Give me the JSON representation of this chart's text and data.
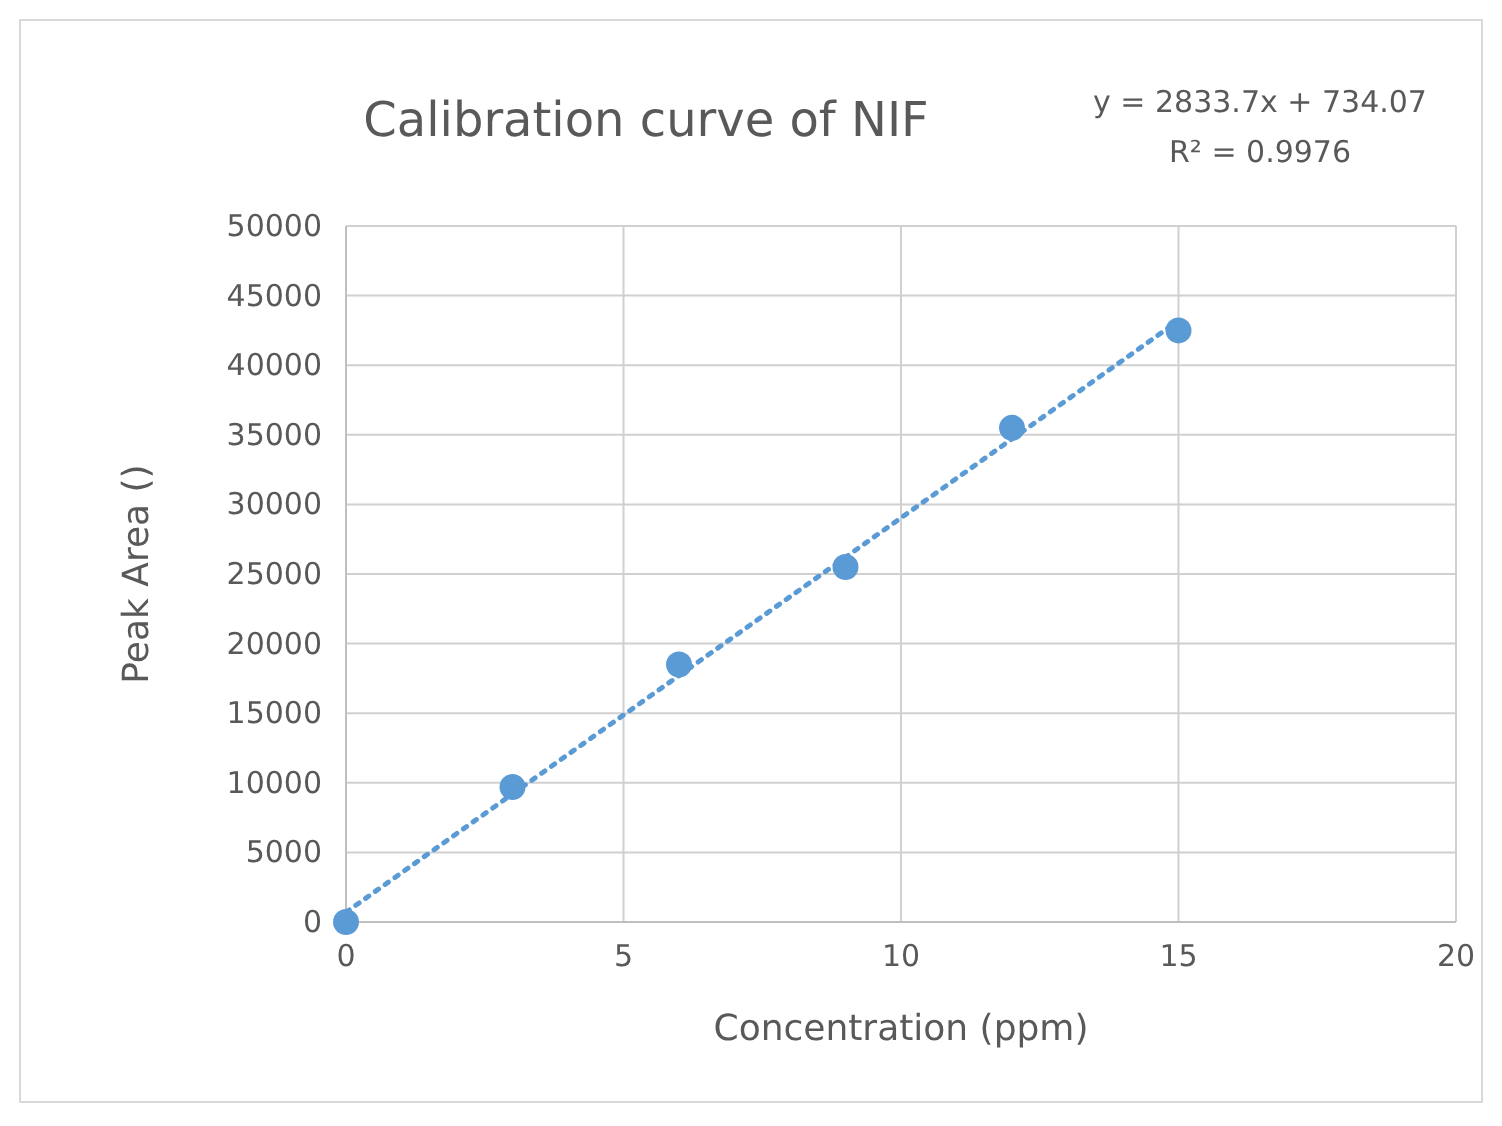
{
  "chart_data": {
    "type": "scatter",
    "title": "Calibration curve of NIF",
    "xlabel": "Concentration (ppm)",
    "ylabel": "Peak Area ()",
    "annotations": [
      "y = 2833.7x + 734.07",
      "R² = 0.9976"
    ],
    "xlim": [
      0,
      20
    ],
    "xticks": [
      0,
      5,
      10,
      15,
      20
    ],
    "ylim": [
      0,
      50000
    ],
    "yticks": [
      0,
      5000,
      10000,
      15000,
      20000,
      25000,
      30000,
      35000,
      40000,
      45000,
      50000
    ],
    "grid": true,
    "marker": "circle",
    "series": [
      {
        "color": "#5b9bd5",
        "x": [
          0,
          3,
          6,
          9,
          12,
          15
        ],
        "values": [
          0,
          9700,
          18500,
          25500,
          35500,
          42500
        ]
      },
      {
        "type": "line",
        "color": "#5b9bd5",
        "x": [
          0,
          15
        ],
        "values": [
          700,
          43200
        ],
        "line_style": "dotted",
        "marker": "none"
      }
    ]
  }
}
